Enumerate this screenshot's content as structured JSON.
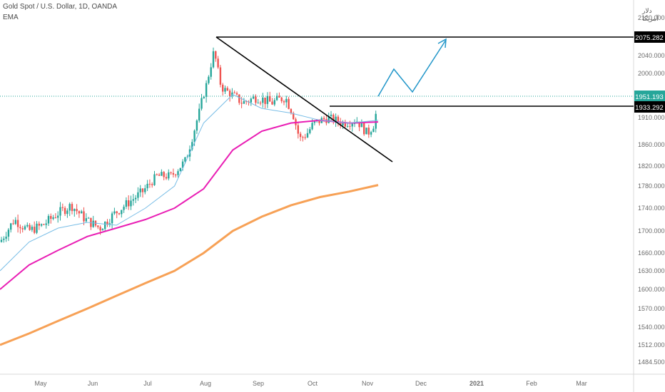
{
  "header": {
    "title": "Gold Spot / U.S. Dollar, 1D, OANDA",
    "indicator": "EMA",
    "currency": "دلار آمریکا"
  },
  "colors": {
    "up": "#26a69a",
    "down": "#ef5350",
    "ema_short": "#78bde6",
    "ema_mid": "#e91eb4",
    "ema_long": "#f7a156",
    "trendline": "#000000",
    "projection": "#2196c9",
    "current_price_line": "#26a69a"
  },
  "chart_data": {
    "type": "line",
    "y_ticks": [
      2120.0,
      2075.282,
      2040.0,
      2000.0,
      1951.193,
      1933.292,
      1910.0,
      1860.0,
      1820.0,
      1780.0,
      1740.0,
      1700.0,
      1660.0,
      1630.0,
      1600.0,
      1570.0,
      1540.0,
      1512.0,
      1484.5
    ],
    "x_ticks": [
      "May",
      "Jun",
      "Jul",
      "Aug",
      "Sep",
      "Oct",
      "Nov",
      "Dec",
      "2021",
      "Feb",
      "Mar"
    ],
    "price_labels": [
      {
        "value": "2075.282",
        "style": "black"
      },
      {
        "value": "1951.193",
        "style": "green"
      },
      {
        "value": "1933.292",
        "style": "black"
      }
    ],
    "series": [
      {
        "role": "ema_long",
        "values": [
          1512,
          1530,
          1550,
          1570,
          1590,
          1610,
          1630,
          1660,
          1700,
          1725,
          1745,
          1760,
          1770,
          1782
        ]
      },
      {
        "role": "ema_mid",
        "values": [
          1600,
          1640,
          1665,
          1690,
          1705,
          1720,
          1740,
          1775,
          1850,
          1885,
          1900,
          1905,
          1900,
          1902
        ]
      },
      {
        "role": "ema_short",
        "values": [
          1630,
          1680,
          1705,
          1715,
          1710,
          1740,
          1780,
          1900,
          1955,
          1930,
          1920,
          1905,
          1900,
          1905
        ]
      }
    ]
  }
}
